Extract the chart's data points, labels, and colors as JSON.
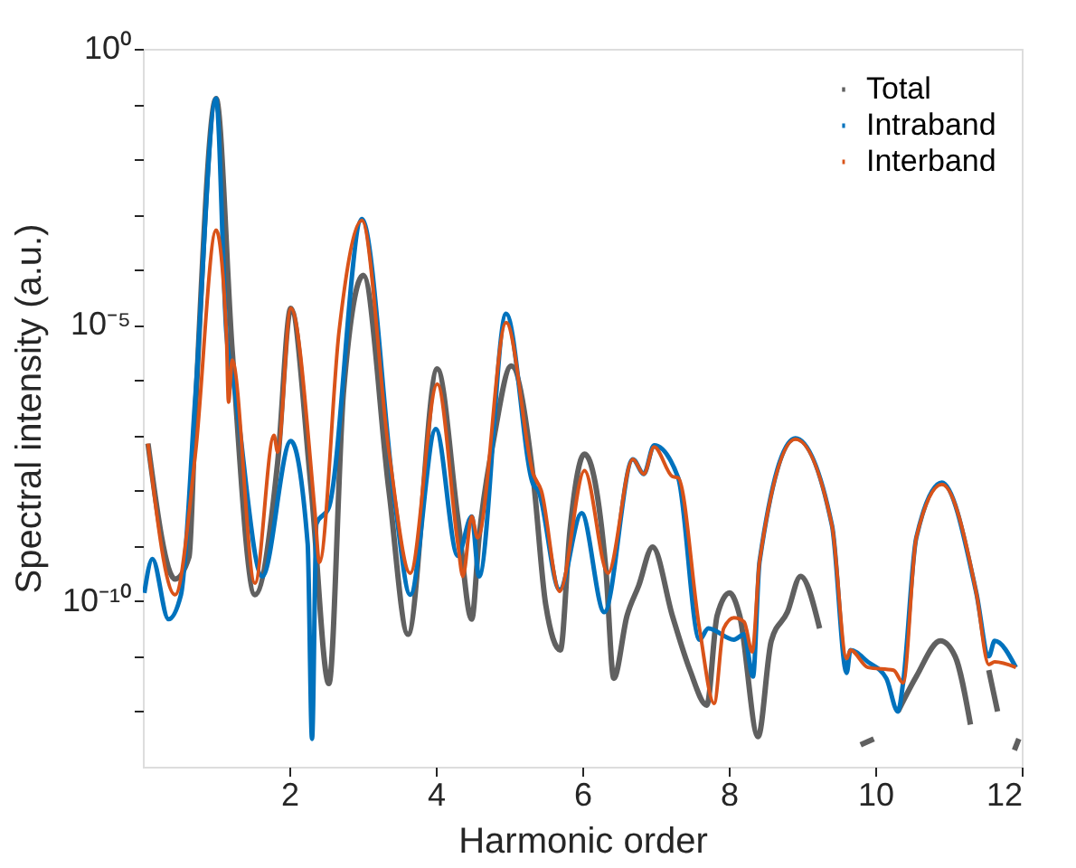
{
  "chart_data": {
    "type": "line",
    "xlabel": "Harmonic order",
    "ylabel": "Spectral intensity (a.u.)",
    "xlim": [
      0,
      12
    ],
    "xticks": [
      2,
      4,
      6,
      8,
      10,
      12
    ],
    "ylim": [
      1e-13,
      1
    ],
    "log": true,
    "grid": false,
    "legend": "top right",
    "marker": "none",
    "line_style": "solid",
    "yticks": [
      {
        "value": 1,
        "label": "10⁰"
      },
      {
        "value": 0.1,
        "label": null
      },
      {
        "value": 0.01,
        "label": null
      },
      {
        "value": 0.001,
        "label": null
      },
      {
        "value": 0.0001,
        "label": null
      },
      {
        "value": 1e-05,
        "label": "10⁻⁵"
      },
      {
        "value": 1e-06,
        "label": null
      },
      {
        "value": 1e-07,
        "label": null
      },
      {
        "value": 1e-08,
        "label": null
      },
      {
        "value": 1e-09,
        "label": null
      },
      {
        "value": 1e-10,
        "label": "10⁻¹⁰"
      },
      {
        "value": 1e-11,
        "label": null
      },
      {
        "value": 1e-12,
        "label": null
      }
    ],
    "series": [
      {
        "name": "Total",
        "color": "#606060",
        "x": [
          0.07,
          0.44,
          0.63,
          0.72,
          1.0,
          1.22,
          1.53,
          1.84,
          2.02,
          2.3,
          2.54,
          2.74,
          3.01,
          3.36,
          3.62,
          4.02,
          4.3,
          4.49,
          4.59,
          4.8,
          5.03,
          5.33,
          5.5,
          5.7,
          5.83,
          6.03,
          6.32,
          6.43,
          6.61,
          6.77,
          6.96,
          7.23,
          7.47,
          7.7,
          7.84,
          8.01,
          8.15,
          8.4,
          8.58,
          8.8,
          8.98,
          9.24,
          9.41,
          9.54,
          9.57,
          9.61,
          9.65,
          9.8,
          9.98,
          10.1,
          10.31,
          10.56,
          10.89,
          11.09,
          11.3,
          11.42,
          11.55,
          11.67,
          11.83,
          11.9,
          11.96
        ],
        "values": [
          7.1e-08,
          2.5e-10,
          6.3e-10,
          3.2e-07,
          0.126,
          3.4e-06,
          1.3e-10,
          3.2e-08,
          2e-05,
          1e-08,
          3.2e-12,
          6.3e-07,
          7.9e-05,
          1e-08,
          2.5e-11,
          1.6e-06,
          3.2e-09,
          4.7e-11,
          1.4e-09,
          1e-07,
          1.8e-06,
          1.7e-08,
          8.7e-11,
          1.3e-11,
          1.8e-09,
          4.6e-08,
          4e-10,
          4e-12,
          5.4e-11,
          1.9e-10,
          9.5e-10,
          5.4e-11,
          5.6e-12,
          1.3e-12,
          5.4e-11,
          1.4e-10,
          5.4e-11,
          3.5e-13,
          1.9e-11,
          6.3e-11,
          2.8e-10,
          3.2e-11,
          null,
          null,
          null,
          null,
          null,
          2.5e-13,
          3.2e-13,
          null,
          1e-12,
          4.3e-12,
          1.9e-11,
          1e-11,
          5.8e-13,
          null,
          5.6e-12,
          1e-12,
          null,
          2e-13,
          3.2e-13
        ]
      },
      {
        "name": "Intraband",
        "color": "#0072bd",
        "x": [
          0.02,
          0.13,
          0.35,
          0.52,
          0.72,
          1.0,
          1.14,
          1.26,
          1.63,
          2.02,
          2.25,
          2.31,
          2.37,
          2.54,
          2.99,
          3.44,
          3.65,
          4.0,
          4.3,
          4.49,
          4.59,
          4.96,
          5.33,
          5.4,
          5.69,
          5.99,
          6.3,
          6.69,
          6.84,
          6.98,
          7.31,
          7.6,
          7.72,
          8.07,
          8.21,
          8.33,
          8.42,
          8.91,
          9.41,
          9.61,
          9.66,
          9.9,
          10.15,
          10.31,
          10.38,
          10.56,
          10.91,
          11.38,
          11.55,
          11.63,
          11.92
        ],
        "values": [
          1.4e-10,
          5.8e-10,
          4.7e-11,
          1.3e-10,
          5.9e-07,
          0.126,
          7.2e-06,
          5.9e-07,
          2.8e-10,
          7.9e-08,
          1.1e-09,
          3.2e-13,
          2.5e-09,
          5e-09,
          0.00083,
          6.3e-09,
          1.3e-10,
          1.3e-07,
          6.6e-10,
          3.4e-09,
          2.8e-10,
          1.6e-05,
          1.3e-08,
          1e-08,
          1.6e-10,
          3.9e-09,
          6.3e-11,
          3.7e-08,
          2e-08,
          6.6e-08,
          1.7e-08,
          2e-11,
          3.2e-11,
          2e-11,
          2.5e-11,
          4.3e-12,
          5.2e-10,
          8.9e-08,
          2.3e-09,
          5e-12,
          1.3e-11,
          7.9e-12,
          4e-12,
          1e-12,
          3.3e-12,
          1.4e-09,
          1.4e-08,
          1.4e-10,
          1e-11,
          1.9e-11,
          6.3e-12
        ]
      },
      {
        "name": "Interband",
        "color": "#d95319",
        "x": [
          0.07,
          0.44,
          0.72,
          1.0,
          1.14,
          1.17,
          1.22,
          1.53,
          1.79,
          1.84,
          2.02,
          2.35,
          2.41,
          2.68,
          2.99,
          3.36,
          3.65,
          4.02,
          4.3,
          4.37,
          4.49,
          4.57,
          4.96,
          5.33,
          5.44,
          5.69,
          6.03,
          6.35,
          6.69,
          6.84,
          6.98,
          7.23,
          7.31,
          7.6,
          7.8,
          7.93,
          8.07,
          8.21,
          8.32,
          8.42,
          8.91,
          9.41,
          9.61,
          9.66,
          9.9,
          10.25,
          10.38,
          10.56,
          10.91,
          11.38,
          11.55,
          11.63,
          11.92
        ],
        "values": [
          7.1e-08,
          1.3e-10,
          5e-08,
          0.00052,
          7.2e-06,
          4e-07,
          2.3e-06,
          2.1e-10,
          1e-07,
          5e-08,
          2e-05,
          4e-09,
          5e-10,
          7.9e-06,
          0.00078,
          5e-08,
          3.2e-10,
          8.5e-07,
          1.1e-09,
          2.8e-10,
          3.4e-09,
          1.4e-09,
          1.1e-05,
          2e-08,
          1e-08,
          1.5e-10,
          2.3e-08,
          3.2e-10,
          3.7e-08,
          2e-08,
          6.2e-08,
          1.8e-08,
          1.7e-08,
          3.2e-11,
          1.4e-12,
          3.2e-11,
          5e-11,
          4.2e-11,
          1.2e-11,
          5.2e-10,
          8.5e-08,
          2.3e-09,
          9.1e-12,
          1.3e-11,
          6.3e-12,
          5.6e-12,
          3.3e-12,
          1.4e-09,
          1.3e-08,
          1.4e-10,
          7.1e-12,
          7.9e-12,
          6.3e-12
        ]
      }
    ]
  }
}
